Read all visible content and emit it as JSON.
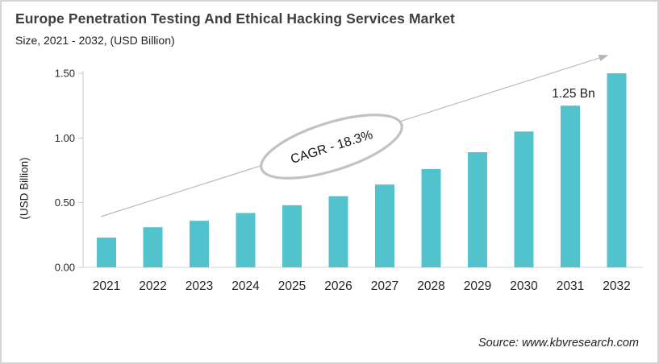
{
  "header": {
    "title": "Europe Penetration Testing And Ethical Hacking Services Market",
    "subtitle": "Size, 2021 - 2032, (USD Billion)"
  },
  "chart_data": {
    "type": "bar",
    "title": "Europe Penetration Testing And Ethical Hacking Services Market",
    "subtitle": "Size, 2021 - 2032, (USD Billion)",
    "categories": [
      "2021",
      "2022",
      "2023",
      "2024",
      "2025",
      "2026",
      "2027",
      "2028",
      "2029",
      "2030",
      "2031",
      "2032"
    ],
    "values": [
      0.23,
      0.31,
      0.36,
      0.42,
      0.48,
      0.55,
      0.64,
      0.76,
      0.89,
      1.05,
      1.25,
      1.5
    ],
    "xlabel": "",
    "ylabel": "(USD Billion)",
    "ylim": [
      0,
      1.5
    ],
    "ytick_values": [
      0,
      0.5,
      1.0,
      1.5
    ],
    "ytick_labels": [
      "0.00",
      "0.50",
      "1.00",
      "1.50"
    ],
    "grid": false,
    "legend": false,
    "annotations": {
      "cagr_label": "CAGR - 18.3%",
      "point_label": {
        "category": "2031",
        "text": "1.25 Bn"
      },
      "trend_arrow": true
    }
  },
  "source": "Source: www.kbvresearch.com",
  "colors": {
    "bar": "#52C3CC",
    "axis": "#C9C9C9",
    "baseline": "#DCDCDC",
    "trend_line": "#B5B5B5",
    "ellipse_stroke": "#C2C2C2",
    "title_text": "#3F3F3F",
    "tick_text": "#262626",
    "annotation_text": "#141414"
  }
}
